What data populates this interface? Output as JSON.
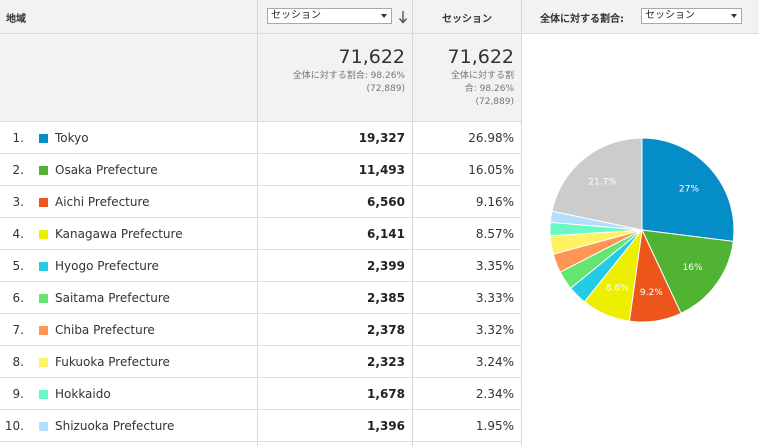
{
  "header": {
    "region_label": "地域",
    "sessions_label": "セッション",
    "primary_metric_select": "セッション",
    "pie_label": "全体に対する割合:",
    "pie_metric_select": "セッション"
  },
  "totals": {
    "sessions_value": "71,622",
    "sessions_share_line1": "全体に対する割合: 98.26%",
    "sessions_share_line2": "(72,889)",
    "pct_value": "71,622",
    "pct_share_line1": "全体に対する割",
    "pct_share_line2": "合: 98.26%",
    "pct_share_line3": "(72,889)"
  },
  "rows": [
    {
      "index": "1.",
      "region": "Tokyo",
      "sessions": "19,327",
      "percent": "26.98%",
      "color": "#058dc7"
    },
    {
      "index": "2.",
      "region": "Osaka Prefecture",
      "sessions": "11,493",
      "percent": "16.05%",
      "color": "#50b432"
    },
    {
      "index": "3.",
      "region": "Aichi Prefecture",
      "sessions": "6,560",
      "percent": "9.16%",
      "color": "#ed561b"
    },
    {
      "index": "4.",
      "region": "Kanagawa Prefecture",
      "sessions": "6,141",
      "percent": "8.57%",
      "color": "#edef00"
    },
    {
      "index": "5.",
      "region": "Hyogo Prefecture",
      "sessions": "2,399",
      "percent": "3.35%",
      "color": "#24cbe5"
    },
    {
      "index": "6.",
      "region": "Saitama Prefecture",
      "sessions": "2,385",
      "percent": "3.33%",
      "color": "#64e572"
    },
    {
      "index": "7.",
      "region": "Chiba Prefecture",
      "sessions": "2,378",
      "percent": "3.32%",
      "color": "#ff9655"
    },
    {
      "index": "8.",
      "region": "Fukuoka Prefecture",
      "sessions": "2,323",
      "percent": "3.24%",
      "color": "#fff263"
    },
    {
      "index": "9.",
      "region": "Hokkaido",
      "sessions": "1,678",
      "percent": "2.34%",
      "color": "#6af9c4"
    },
    {
      "index": "10.",
      "region": "Shizuoka Prefecture",
      "sessions": "1,396",
      "percent": "1.95%",
      "color": "#b2deff"
    }
  ],
  "chart_data": {
    "type": "pie",
    "slices": [
      {
        "label": "Tokyo",
        "value": 26.98,
        "color": "#058dc7",
        "display": "27%"
      },
      {
        "label": "Osaka Prefecture",
        "value": 16.05,
        "color": "#50b432",
        "display": "16%"
      },
      {
        "label": "Aichi Prefecture",
        "value": 9.16,
        "color": "#ed561b",
        "display": "9.2%"
      },
      {
        "label": "Kanagawa Prefecture",
        "value": 8.57,
        "color": "#edef00",
        "display": "8.6%"
      },
      {
        "label": "Hyogo Prefecture",
        "value": 3.35,
        "color": "#24cbe5",
        "display": ""
      },
      {
        "label": "Saitama Prefecture",
        "value": 3.33,
        "color": "#64e572",
        "display": ""
      },
      {
        "label": "Chiba Prefecture",
        "value": 3.32,
        "color": "#ff9655",
        "display": ""
      },
      {
        "label": "Fukuoka Prefecture",
        "value": 3.24,
        "color": "#fff263",
        "display": ""
      },
      {
        "label": "Hokkaido",
        "value": 2.34,
        "color": "#6af9c4",
        "display": ""
      },
      {
        "label": "Shizuoka Prefecture",
        "value": 1.95,
        "color": "#b2deff",
        "display": ""
      },
      {
        "label": "",
        "value": 21.71,
        "color": "#cccccc",
        "display": "21.7%"
      }
    ]
  }
}
